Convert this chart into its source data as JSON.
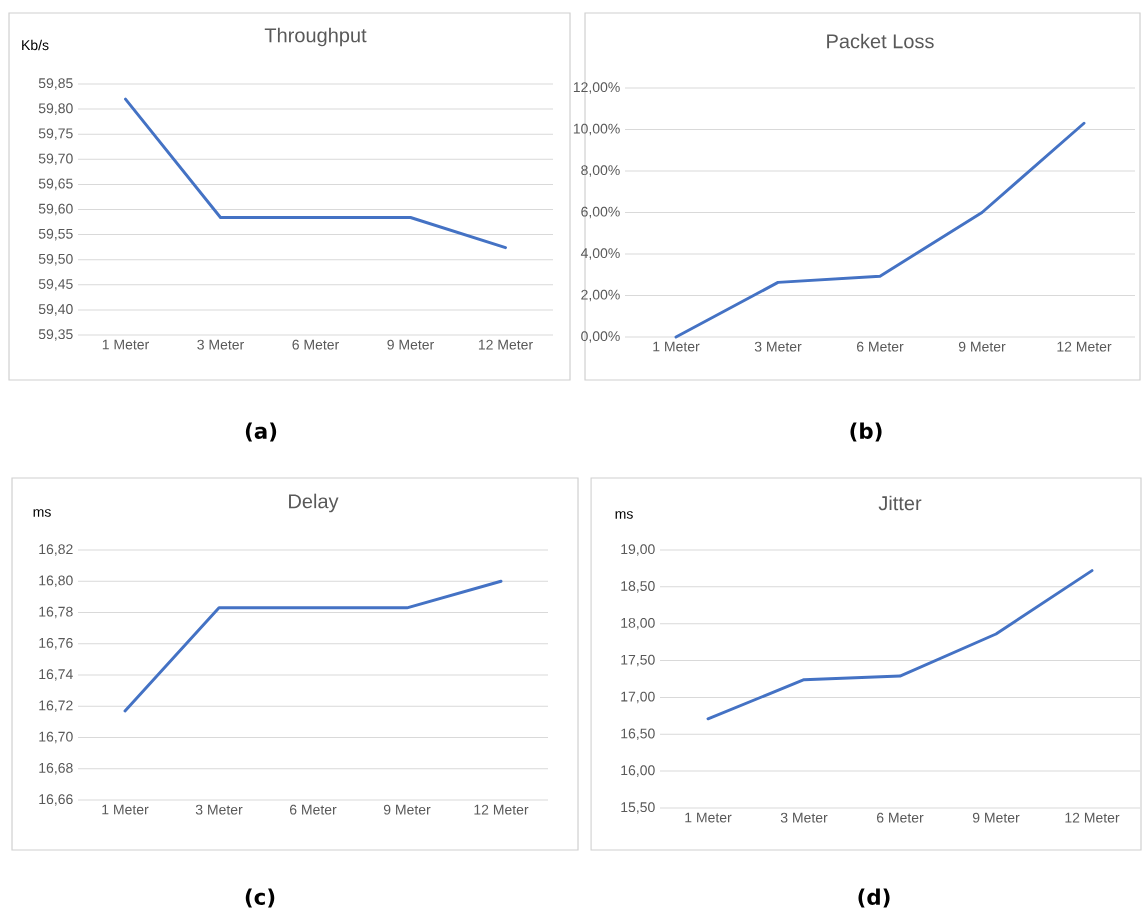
{
  "chart_data": [
    {
      "type": "line",
      "title": "Throughput",
      "ylabel": "Kb/s",
      "categories": [
        "1 Meter",
        "3 Meter",
        "6 Meter",
        "9 Meter",
        "12 Meter"
      ],
      "series": [
        {
          "color": "#4472c4",
          "values": [
            59.82,
            59.584,
            59.584,
            59.584,
            59.524
          ]
        }
      ],
      "ylim": [
        59.35,
        59.85
      ],
      "yticks": [
        {
          "value": 59.35,
          "label": "59,35"
        },
        {
          "value": 59.4,
          "label": "59,40"
        },
        {
          "value": 59.45,
          "label": "59,45"
        },
        {
          "value": 59.5,
          "label": "59,50"
        },
        {
          "value": 59.55,
          "label": "59,55"
        },
        {
          "value": 59.6,
          "label": "59,60"
        },
        {
          "value": 59.65,
          "label": "59,65"
        },
        {
          "value": 59.7,
          "label": "59,70"
        },
        {
          "value": 59.75,
          "label": "59,75"
        },
        {
          "value": 59.8,
          "label": "59,80"
        },
        {
          "value": 59.85,
          "label": "59,85"
        }
      ],
      "grid": "y",
      "annotations": [
        "(a)"
      ]
    },
    {
      "type": "line",
      "title": "Packet Loss",
      "categories": [
        "1 Meter",
        "3 Meter",
        "6 Meter",
        "9 Meter",
        "12 Meter"
      ],
      "series": [
        {
          "color": "#4472c4",
          "values": [
            0,
            2.63,
            2.93,
            6.0,
            10.3
          ]
        }
      ],
      "ylim": [
        0,
        12
      ],
      "yticks": [
        {
          "value": 0,
          "label": "0,00%"
        },
        {
          "value": 2,
          "label": "2,00%"
        },
        {
          "value": 4,
          "label": "4,00%"
        },
        {
          "value": 6,
          "label": "6,00%"
        },
        {
          "value": 8,
          "label": "8,00%"
        },
        {
          "value": 10,
          "label": "10,00%"
        },
        {
          "value": 12,
          "label": "12,00%"
        }
      ],
      "grid": "y",
      "annotations": [
        "(b)"
      ]
    },
    {
      "type": "line",
      "title": "Delay",
      "ylabel": "ms",
      "categories": [
        "1 Meter",
        "3 Meter",
        "6 Meter",
        "9 Meter",
        "12 Meter"
      ],
      "series": [
        {
          "color": "#4472c4",
          "values": [
            16.717,
            16.783,
            16.783,
            16.783,
            16.8
          ]
        }
      ],
      "ylim": [
        16.66,
        16.82
      ],
      "yticks": [
        {
          "value": 16.66,
          "label": "16,66"
        },
        {
          "value": 16.68,
          "label": "16,68"
        },
        {
          "value": 16.7,
          "label": "16,70"
        },
        {
          "value": 16.72,
          "label": "16,72"
        },
        {
          "value": 16.74,
          "label": "16,74"
        },
        {
          "value": 16.76,
          "label": "16,76"
        },
        {
          "value": 16.78,
          "label": "16,78"
        },
        {
          "value": 16.8,
          "label": "16,80"
        },
        {
          "value": 16.82,
          "label": "16,82"
        }
      ],
      "grid": "y",
      "annotations": [
        "(c)"
      ]
    },
    {
      "type": "line",
      "title": "Jitter",
      "ylabel": "ms",
      "categories": [
        "1 Meter",
        "3 Meter",
        "6 Meter",
        "9 Meter",
        "12 Meter"
      ],
      "series": [
        {
          "color": "#4472c4",
          "values": [
            16.71,
            17.24,
            17.29,
            17.86,
            18.72
          ]
        }
      ],
      "ylim": [
        15.5,
        19
      ],
      "yticks": [
        {
          "value": 15.5,
          "label": "15,50"
        },
        {
          "value": 16,
          "label": "16,00"
        },
        {
          "value": 16.5,
          "label": "16,50"
        },
        {
          "value": 17,
          "label": "17,00"
        },
        {
          "value": 17.5,
          "label": "17,50"
        },
        {
          "value": 18,
          "label": "18,00"
        },
        {
          "value": 18.5,
          "label": "18,50"
        },
        {
          "value": 19,
          "label": "19,00"
        }
      ],
      "grid": "y",
      "annotations": [
        "(d)"
      ]
    }
  ]
}
